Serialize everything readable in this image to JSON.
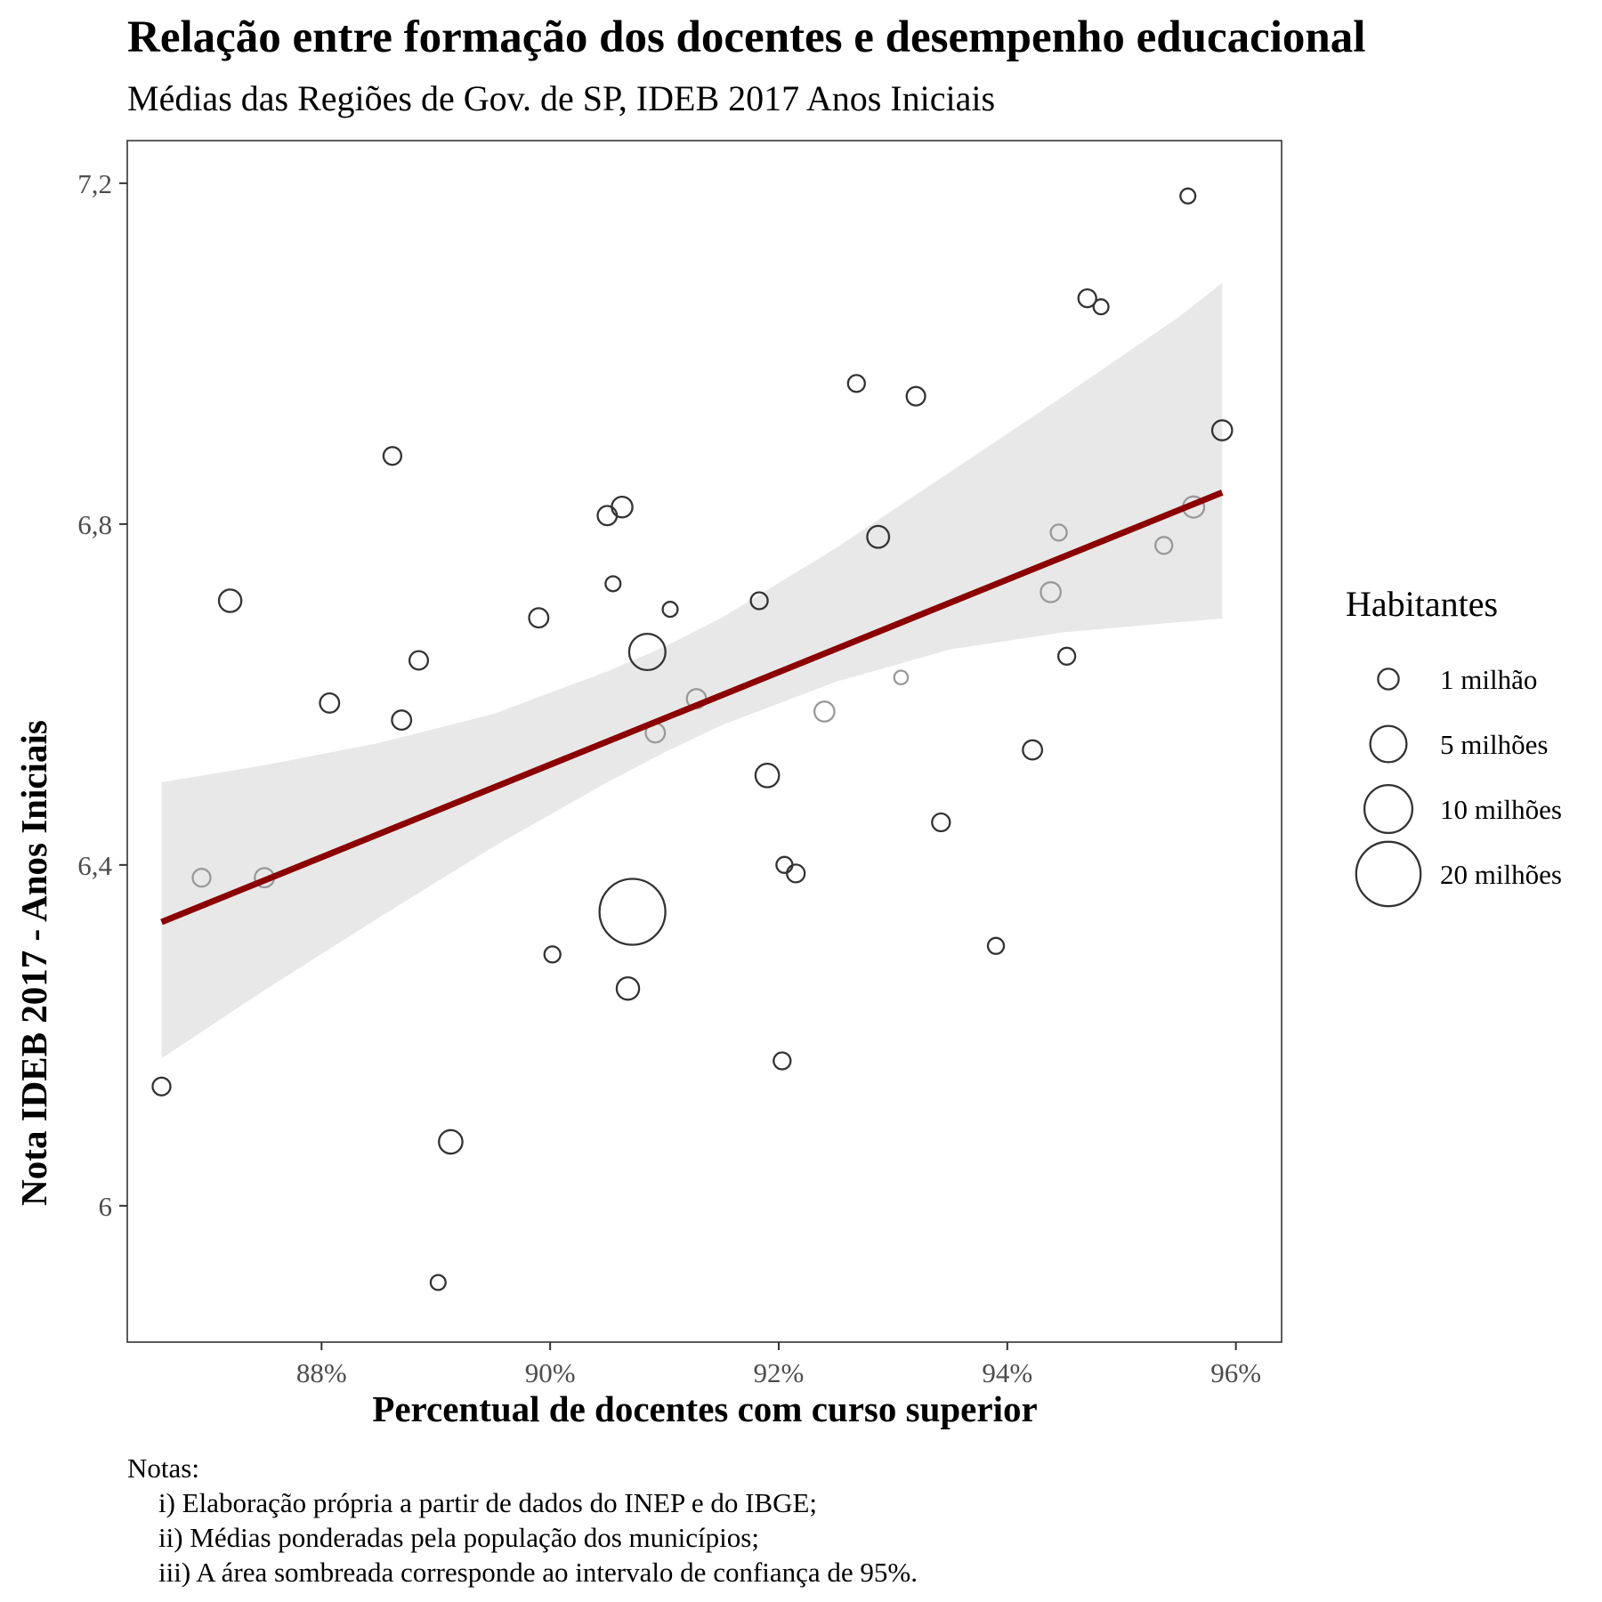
{
  "chart_data": {
    "type": "scatter",
    "title": "Relação entre formação dos docentes e desempenho educacional",
    "subtitle": "Médias das Regiões de Gov. de SP, IDEB 2017 Anos Iniciais",
    "xlabel": "Percentual de docentes com curso superior",
    "ylabel": "Nota IDEB 2017 - Anos Iniciais",
    "xlim": [
      86.3,
      96.4
    ],
    "ylim": [
      5.84,
      7.25
    ],
    "x_ticks": [
      88,
      90,
      92,
      94,
      96
    ],
    "x_tick_labels": [
      "88%",
      "90%",
      "92%",
      "94%",
      "96%"
    ],
    "y_ticks": [
      6.0,
      6.4,
      6.8,
      7.2
    ],
    "y_tick_labels": [
      "6",
      "6,4",
      "6,8",
      "7,2"
    ],
    "grid": false,
    "legend": {
      "title": "Habitantes",
      "placement": "right",
      "entries": [
        {
          "label": "1 milhão",
          "value": 1
        },
        {
          "label": "5 milhões",
          "value": 5
        },
        {
          "label": "10 milhões",
          "value": 10
        },
        {
          "label": "20 milhões",
          "value": 20
        }
      ]
    },
    "series": [
      {
        "points": [
          {
            "x": 86.6,
            "y": 6.14,
            "pop": 0.6
          },
          {
            "x": 86.95,
            "y": 6.385,
            "pop": 0.6,
            "shade": "light"
          },
          {
            "x": 87.2,
            "y": 6.71,
            "pop": 1.3
          },
          {
            "x": 87.5,
            "y": 6.385,
            "pop": 0.8,
            "shade": "light"
          },
          {
            "x": 88.07,
            "y": 6.59,
            "pop": 0.8
          },
          {
            "x": 88.62,
            "y": 6.88,
            "pop": 0.6
          },
          {
            "x": 88.7,
            "y": 6.57,
            "pop": 0.8
          },
          {
            "x": 88.85,
            "y": 6.64,
            "pop": 0.7
          },
          {
            "x": 89.02,
            "y": 5.91,
            "pop": 0.3
          },
          {
            "x": 89.13,
            "y": 6.075,
            "pop": 1.5
          },
          {
            "x": 89.9,
            "y": 6.69,
            "pop": 0.8
          },
          {
            "x": 90.02,
            "y": 6.295,
            "pop": 0.4
          },
          {
            "x": 90.5,
            "y": 6.81,
            "pop": 0.8
          },
          {
            "x": 90.55,
            "y": 6.73,
            "pop": 0.3
          },
          {
            "x": 90.63,
            "y": 6.82,
            "pop": 1.0
          },
          {
            "x": 90.72,
            "y": 6.345,
            "pop": 21
          },
          {
            "x": 90.68,
            "y": 6.255,
            "pop": 1.3
          },
          {
            "x": 90.85,
            "y": 6.65,
            "pop": 5
          },
          {
            "x": 90.92,
            "y": 6.555,
            "pop": 0.8,
            "shade": "light"
          },
          {
            "x": 91.05,
            "y": 6.7,
            "pop": 0.3
          },
          {
            "x": 91.28,
            "y": 6.595,
            "pop": 0.8,
            "shade": "light"
          },
          {
            "x": 91.83,
            "y": 6.71,
            "pop": 0.5
          },
          {
            "x": 91.9,
            "y": 6.505,
            "pop": 1.5
          },
          {
            "x": 92.03,
            "y": 6.17,
            "pop": 0.5
          },
          {
            "x": 92.05,
            "y": 6.4,
            "pop": 0.4
          },
          {
            "x": 92.15,
            "y": 6.39,
            "pop": 0.6
          },
          {
            "x": 92.4,
            "y": 6.58,
            "pop": 0.9,
            "shade": "light"
          },
          {
            "x": 92.68,
            "y": 6.965,
            "pop": 0.5
          },
          {
            "x": 92.87,
            "y": 6.785,
            "pop": 1.2
          },
          {
            "x": 93.07,
            "y": 6.62,
            "pop": 0.2,
            "shade": "light"
          },
          {
            "x": 93.2,
            "y": 6.95,
            "pop": 0.7
          },
          {
            "x": 93.42,
            "y": 6.45,
            "pop": 0.6
          },
          {
            "x": 93.9,
            "y": 6.305,
            "pop": 0.4
          },
          {
            "x": 94.22,
            "y": 6.535,
            "pop": 0.8
          },
          {
            "x": 94.38,
            "y": 6.72,
            "pop": 0.9,
            "shade": "light"
          },
          {
            "x": 94.45,
            "y": 6.79,
            "pop": 0.4,
            "shade": "light"
          },
          {
            "x": 94.52,
            "y": 6.645,
            "pop": 0.5
          },
          {
            "x": 94.7,
            "y": 7.065,
            "pop": 0.6
          },
          {
            "x": 94.82,
            "y": 7.055,
            "pop": 0.3
          },
          {
            "x": 95.37,
            "y": 6.775,
            "pop": 0.5,
            "shade": "light"
          },
          {
            "x": 95.58,
            "y": 7.185,
            "pop": 0.3
          },
          {
            "x": 95.63,
            "y": 6.82,
            "pop": 1.1,
            "shade": "light"
          },
          {
            "x": 95.88,
            "y": 6.91,
            "pop": 0.9
          }
        ]
      }
    ],
    "trend_line": {
      "x": [
        86.6,
        95.88
      ],
      "y": [
        6.333,
        6.837
      ],
      "color": "#8b0000"
    },
    "confidence_band": {
      "x": [
        86.6,
        87.5,
        88.5,
        89.5,
        90.5,
        91.0,
        91.5,
        92.5,
        93.5,
        94.5,
        95.5,
        95.88
      ],
      "lower": [
        6.173,
        6.253,
        6.338,
        6.421,
        6.497,
        6.532,
        6.564,
        6.615,
        6.653,
        6.673,
        6.685,
        6.689
      ],
      "upper": [
        6.497,
        6.517,
        6.543,
        6.577,
        6.627,
        6.656,
        6.69,
        6.772,
        6.861,
        6.951,
        7.043,
        7.083
      ],
      "color": "#e8e8e8"
    }
  },
  "notes": {
    "header": "Notas:",
    "lines": [
      "i) Elaboração própria a partir de dados do INEP e do IBGE;",
      "ii) Médias ponderadas pela população dos municípios;",
      "iii) A área sombreada corresponde ao intervalo de confiança de 95%."
    ]
  },
  "colors": {
    "point": "#333333",
    "point_light": "#999999",
    "trend": "#8b0000",
    "band": "#e8e8e8",
    "panel_border": "#333333"
  }
}
